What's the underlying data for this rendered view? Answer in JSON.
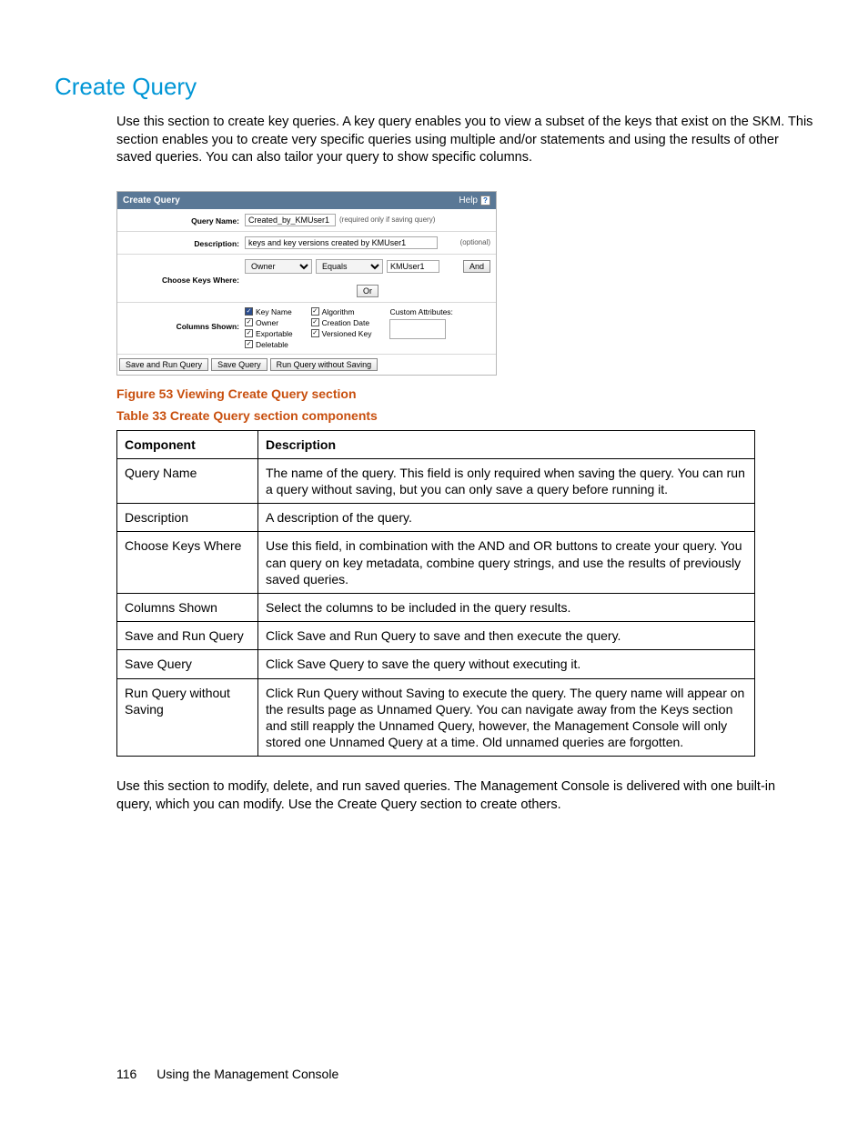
{
  "title": "Create Query",
  "intro": "Use this section to create key queries. A key query enables you to view a subset of the keys that exist on the SKM. This section enables you to create very specific queries using multiple and/or statements and using the results of other saved queries. You can also tailor your query to show specific columns.",
  "panel": {
    "header": "Create Query",
    "help": "Help",
    "rows": {
      "queryName": {
        "label": "Query Name:",
        "value": "Created_by_KMUser1",
        "hint": "(required only if saving query)"
      },
      "description": {
        "label": "Description:",
        "value": "keys and key versions created by KMUser1",
        "hint": "(optional)"
      },
      "choose": {
        "label": "Choose Keys Where:",
        "sel1": "Owner",
        "sel2": "Equals",
        "val": "KMUser1",
        "and": "And",
        "or": "Or"
      },
      "columns": {
        "label": "Columns Shown:",
        "group1": [
          "Key Name",
          "Owner",
          "Exportable",
          "Deletable"
        ],
        "group2": [
          "Algorithm",
          "Creation Date",
          "Versioned Key"
        ],
        "customLabel": "Custom Attributes:"
      }
    },
    "buttons": {
      "saveRun": "Save and Run Query",
      "save": "Save Query",
      "runNoSave": "Run Query without Saving"
    }
  },
  "figureCaption": "Figure 53 Viewing Create Query section",
  "tableCaption": "Table 33 Create Query section components",
  "table": {
    "headers": [
      "Component",
      "Description"
    ],
    "rows": [
      [
        "Query Name",
        "The name of the query. This field is only required when saving the query. You can run a query without saving, but you can only save a query before running it."
      ],
      [
        "Description",
        "A description of the query."
      ],
      [
        "Choose Keys Where",
        "Use this field, in combination with the AND and OR buttons to create your query. You can query on key metadata, combine query strings, and use the results of previously saved queries."
      ],
      [
        "Columns Shown",
        "Select the columns to be included in the query results."
      ],
      [
        "Save and Run Query",
        "Click Save and Run Query to save and then execute the query."
      ],
      [
        "Save Query",
        "Click Save Query to save the query without executing it."
      ],
      [
        "Run Query without Saving",
        "Click Run Query without Saving to execute the query. The query name will appear on the results page as Unnamed Query. You can navigate away from the Keys section and still reapply the Unnamed Query, however, the Management Console will only stored one Unnamed Query at a time. Old unnamed queries are forgotten."
      ]
    ]
  },
  "closing": "Use this section to modify, delete, and run saved queries. The Management Console is delivered with one built-in query, which you can modify. Use the Create Query section to create others.",
  "footer": {
    "page": "116",
    "text": "Using the Management Console"
  }
}
